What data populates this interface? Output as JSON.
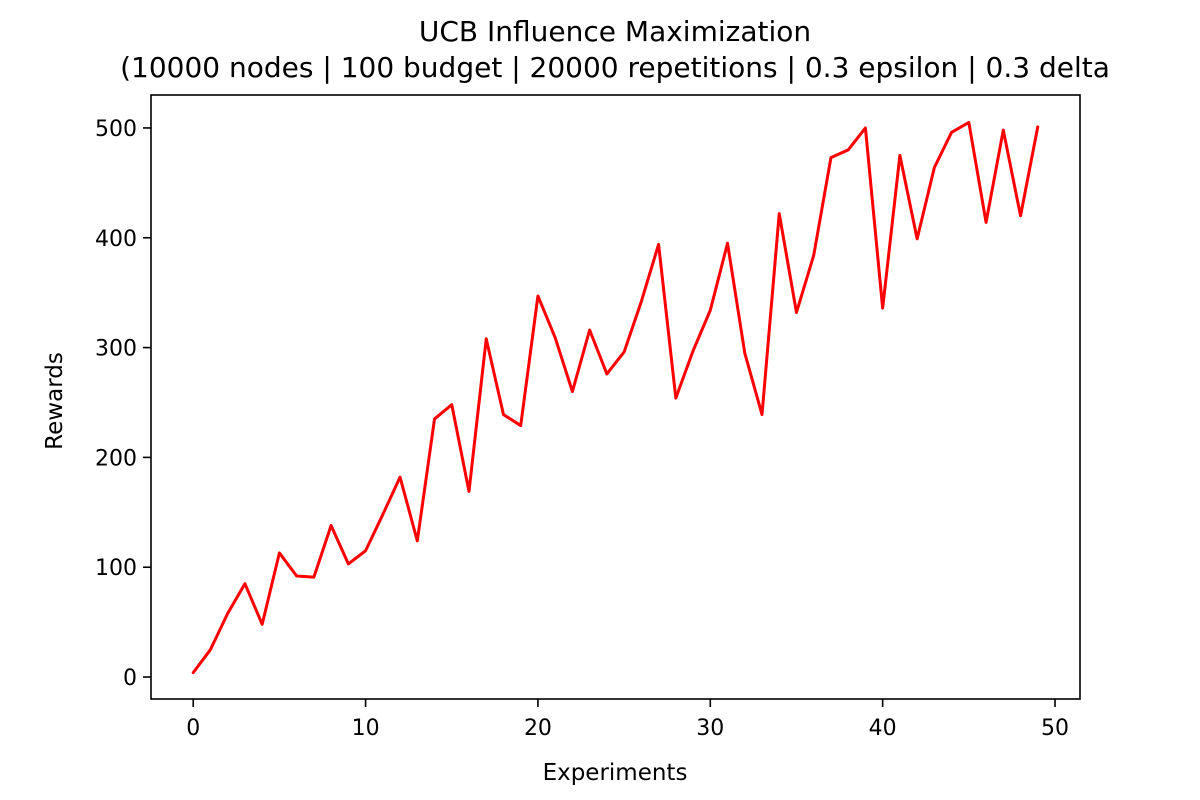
{
  "chart_data": {
    "type": "line",
    "title": "UCB Influence Maximization",
    "subtitle": "(10000 nodes | 100 budget | 20000 repetitions | 0.3 epsilon | 0.3 delta",
    "xlabel": "Experiments",
    "ylabel": "Rewards",
    "xlim": [
      -2.45,
      51.45
    ],
    "ylim": [
      -20,
      530
    ],
    "x_ticks": [
      0,
      10,
      20,
      30,
      40,
      50
    ],
    "y_ticks": [
      0,
      100,
      200,
      300,
      400,
      500
    ],
    "x_tick_labels": [
      "0",
      "10",
      "20",
      "30",
      "40",
      "50"
    ],
    "y_tick_labels": [
      "0",
      "100",
      "200",
      "300",
      "400",
      "500"
    ],
    "grid": false,
    "legend": "none",
    "series": [
      {
        "color": "#ff0000",
        "x": [
          0,
          1,
          2,
          3,
          4,
          5,
          6,
          7,
          8,
          9,
          10,
          11,
          12,
          13,
          14,
          15,
          16,
          17,
          18,
          19,
          20,
          21,
          22,
          23,
          24,
          25,
          26,
          27,
          28,
          29,
          30,
          31,
          32,
          33,
          34,
          35,
          36,
          37,
          38,
          39,
          40,
          41,
          42,
          43,
          44,
          45,
          46,
          47,
          48,
          49
        ],
        "values": [
          4,
          25,
          58,
          85,
          48,
          113,
          92,
          91,
          138,
          103,
          115,
          148,
          182,
          124,
          235,
          248,
          169,
          308,
          239,
          229,
          347,
          309,
          260,
          316,
          276,
          296,
          342,
          394,
          254,
          297,
          334,
          395,
          295,
          239,
          422,
          332,
          384,
          473,
          480,
          500,
          336,
          475,
          399,
          464,
          496,
          505,
          414,
          498,
          420,
          501
        ]
      }
    ]
  }
}
